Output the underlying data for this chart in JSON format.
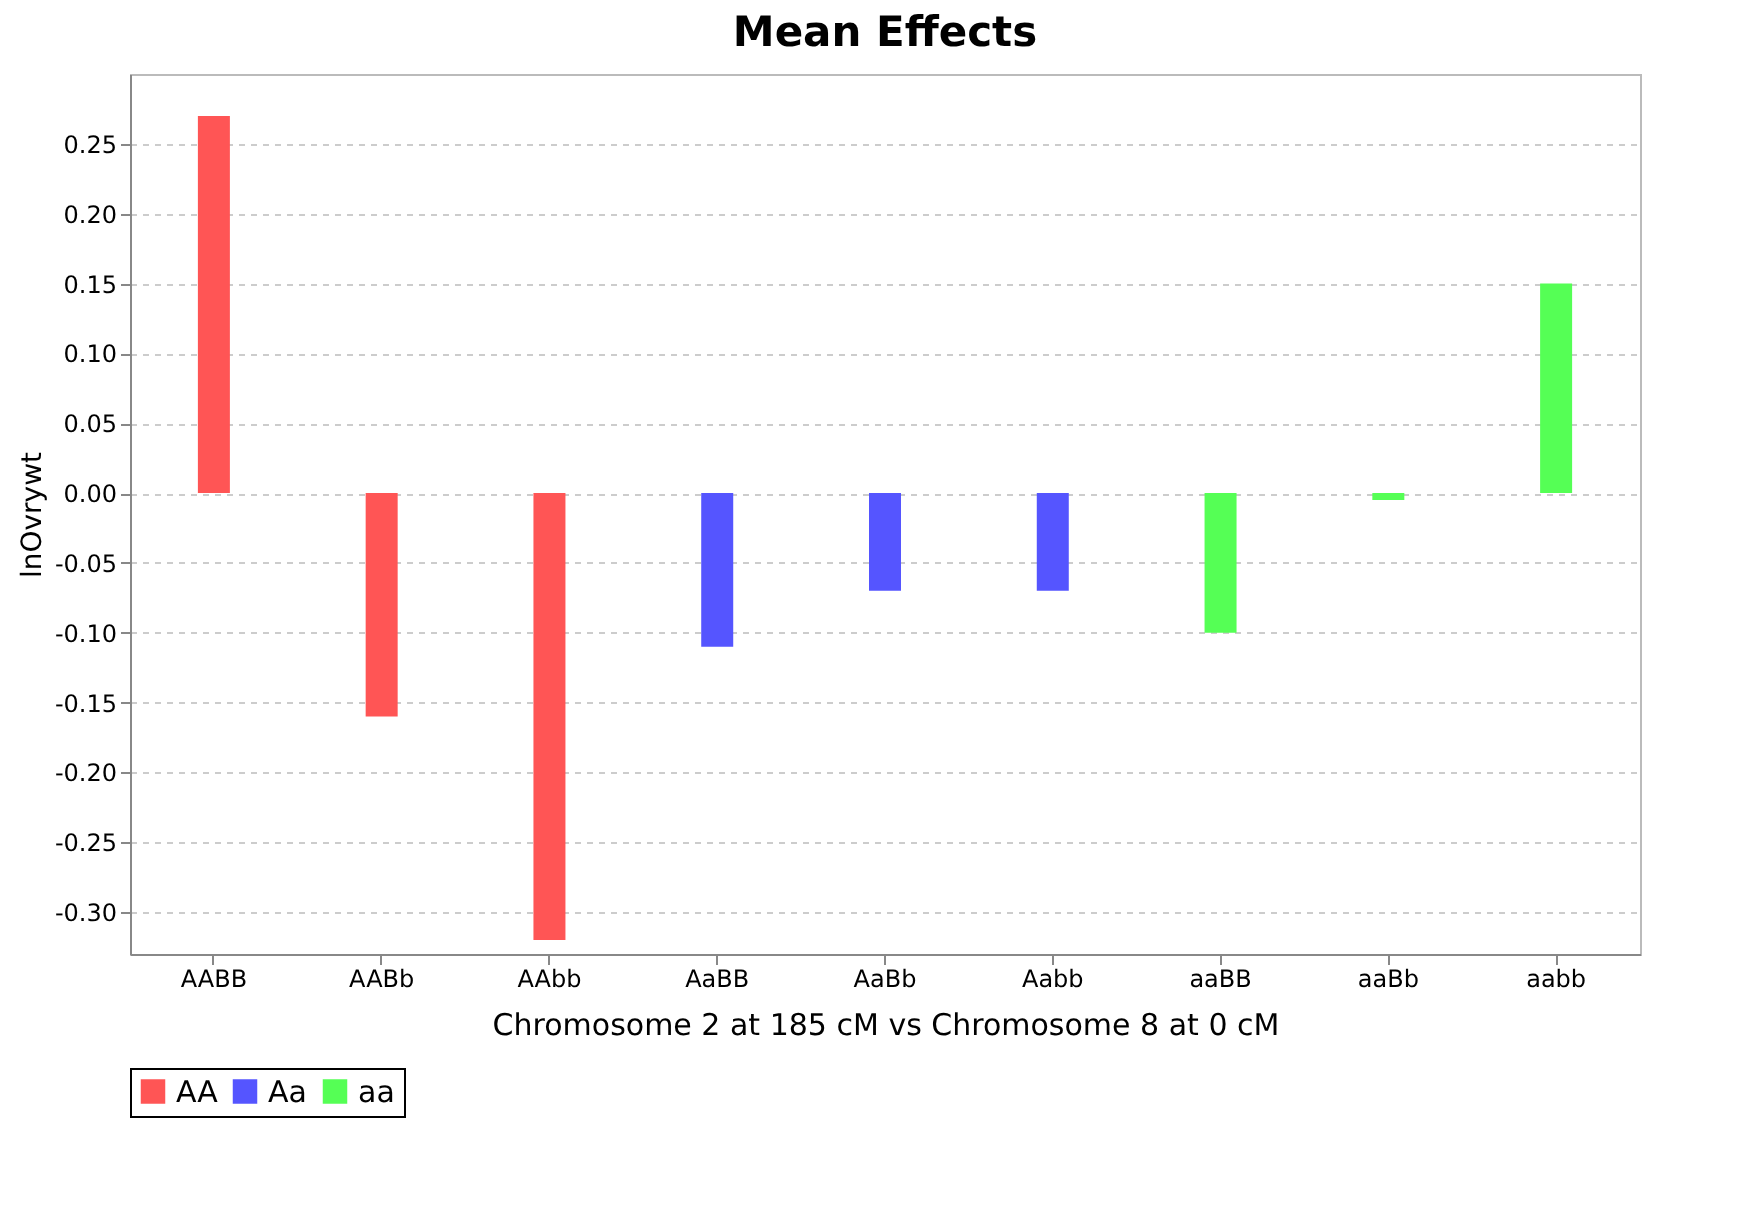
{
  "chart_data": {
    "type": "bar",
    "title": "Mean Effects",
    "xlabel": "Chromosome 2 at 185 cM vs Chromosome 8 at 0 cM",
    "ylabel": "lnOvrywt",
    "categories": [
      "AABB",
      "AABb",
      "AAbb",
      "AaBB",
      "AaBb",
      "Aabb",
      "aaBB",
      "aaBb",
      "aabb"
    ],
    "series": [
      {
        "name": "AA",
        "color": "#ff5555",
        "values": [
          0.27,
          -0.16,
          -0.32,
          null,
          null,
          null,
          null,
          null,
          null
        ]
      },
      {
        "name": "Aa",
        "color": "#5555ff",
        "values": [
          null,
          null,
          null,
          -0.11,
          -0.07,
          -0.07,
          null,
          null,
          null
        ]
      },
      {
        "name": "aa",
        "color": "#55ff55",
        "values": [
          null,
          null,
          null,
          null,
          null,
          null,
          -0.1,
          -0.005,
          0.15
        ]
      }
    ],
    "ylim": [
      -0.33,
      0.3
    ],
    "yticks": [
      {
        "value": -0.3,
        "label": "-0.30"
      },
      {
        "value": -0.25,
        "label": "-0.25"
      },
      {
        "value": -0.2,
        "label": "-0.20"
      },
      {
        "value": -0.15,
        "label": "-0.15"
      },
      {
        "value": -0.1,
        "label": "-0.10"
      },
      {
        "value": -0.05,
        "label": "-0.05"
      },
      {
        "value": 0,
        "label": "0.00"
      },
      {
        "value": 0.05,
        "label": "0.05"
      },
      {
        "value": 0.1,
        "label": "0.10"
      },
      {
        "value": 0.15,
        "label": "0.15"
      },
      {
        "value": 0.2,
        "label": "0.20"
      },
      {
        "value": 0.25,
        "label": "0.25"
      }
    ],
    "grid": "y",
    "legend": "bottom"
  }
}
